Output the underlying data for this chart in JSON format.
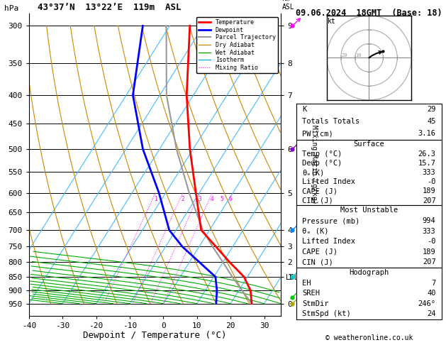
{
  "title_left": "43°37’N  13°22’E  119m  ASL",
  "title_right": "09.06.2024  18GMT  (Base: 18)",
  "xlabel": "Dewpoint / Temperature (°C)",
  "pressure_levels": [
    300,
    350,
    400,
    450,
    500,
    550,
    600,
    650,
    700,
    750,
    800,
    850,
    900,
    950
  ],
  "temp_profile": {
    "temps": [
      26.3,
      23.5,
      19.0,
      12.0,
      5.0,
      -2.5,
      -11.0,
      -21.0,
      -32.0,
      -44.0
    ],
    "pressures": [
      950,
      900,
      850,
      800,
      750,
      700,
      600,
      500,
      400,
      300
    ]
  },
  "dewp_profile": {
    "dewps": [
      15.7,
      13.5,
      10.5,
      3.0,
      -5.0,
      -12.0,
      -22.0,
      -35.0,
      -48.0,
      -58.0
    ],
    "pressures": [
      950,
      900,
      850,
      800,
      750,
      700,
      600,
      500,
      400,
      300
    ]
  },
  "parcel_profile": {
    "temps": [
      26.3,
      21.0,
      15.5,
      10.0,
      4.0,
      -2.0,
      -13.0,
      -25.0,
      -38.0,
      -51.0
    ],
    "pressures": [
      950,
      900,
      850,
      800,
      750,
      700,
      600,
      500,
      400,
      300
    ]
  },
  "km_labels": {
    "300": 9,
    "350": 8,
    "400": 7,
    "500": 6,
    "600": 5,
    "700": 4,
    "750": 3,
    "800": 2,
    "850": 1,
    "950": 0
  },
  "lcl_pressure": 853,
  "legend_items": [
    {
      "label": "Temperature",
      "color": "#ff0000",
      "lw": 2.0,
      "ls": "-"
    },
    {
      "label": "Dewpoint",
      "color": "#0000ff",
      "lw": 2.0,
      "ls": "-"
    },
    {
      "label": "Parcel Trajectory",
      "color": "#999999",
      "lw": 1.5,
      "ls": "-"
    },
    {
      "label": "Dry Adiabat",
      "color": "#cc8800",
      "lw": 0.9,
      "ls": "-"
    },
    {
      "label": "Wet Adiabat",
      "color": "#00aa00",
      "lw": 0.9,
      "ls": "-"
    },
    {
      "label": "Isotherm",
      "color": "#00aaff",
      "lw": 0.9,
      "ls": "-"
    },
    {
      "label": "Mixing Ratio",
      "color": "#ff00ff",
      "lw": 0.8,
      "ls": ":"
    }
  ],
  "wind_barbs": [
    {
      "pressure": 300,
      "color": "#ff00ff",
      "u": -2,
      "v": 5
    },
    {
      "pressure": 500,
      "color": "#8800cc",
      "u": -1,
      "v": 4
    },
    {
      "pressure": 700,
      "color": "#0088ff",
      "u": -1,
      "v": 3
    },
    {
      "pressure": 850,
      "color": "#00cccc",
      "u": -1,
      "v": 2
    },
    {
      "pressure": 925,
      "color": "#00cc00",
      "u": -1,
      "v": 1
    },
    {
      "pressure": 950,
      "color": "#aaaa00",
      "u": -1,
      "v": 0.5
    }
  ],
  "stats": {
    "K": "29",
    "Totals Totals": "45",
    "PW (cm)": "3.16",
    "Surface_Temp": "26.3",
    "Surface_Dewp": "15.7",
    "Surface_theta_e": "333",
    "Surface_LI": "-0",
    "Surface_CAPE": "189",
    "Surface_CIN": "207",
    "MU_Pressure": "994",
    "MU_theta_e": "333",
    "MU_LI": "-0",
    "MU_CAPE": "189",
    "MU_CIN": "207",
    "Hodo_EH": "7",
    "Hodo_SREH": "40",
    "Hodo_StmDir": "246°",
    "Hodo_StmSpd": "24"
  },
  "skew": 45,
  "pmin": 300,
  "pmax": 950,
  "tmin": -40,
  "tmax": 35,
  "mixing_ratios": [
    1,
    2,
    3,
    4,
    5,
    6,
    8,
    10,
    15,
    20,
    25
  ]
}
